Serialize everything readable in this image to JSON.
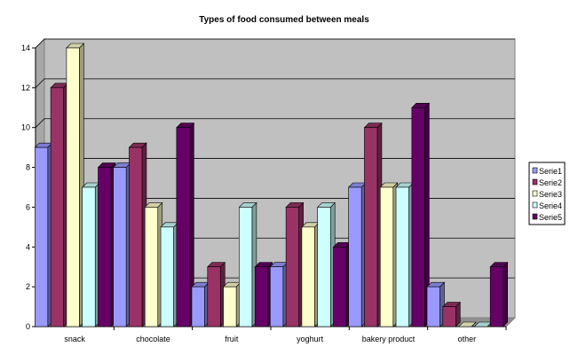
{
  "chart_data": {
    "type": "bar",
    "title": "Types of food consumed between meals",
    "categories": [
      "snack",
      "chocolate",
      "fruit",
      "yoghurt",
      "bakery product",
      "other"
    ],
    "series": [
      {
        "name": "Serie1",
        "values": [
          9,
          8,
          2,
          3,
          7,
          2
        ],
        "color": "#9999ff"
      },
      {
        "name": "Serie2",
        "values": [
          12,
          9,
          3,
          6,
          10,
          1
        ],
        "color": "#993366"
      },
      {
        "name": "Serie3",
        "values": [
          14,
          6,
          2,
          5,
          7,
          0
        ],
        "color": "#ffffcc"
      },
      {
        "name": "Serie4",
        "values": [
          7,
          5,
          6,
          6,
          7,
          0
        ],
        "color": "#ccffff"
      },
      {
        "name": "Serie5",
        "values": [
          8,
          10,
          3,
          4,
          11,
          3
        ],
        "color": "#660066"
      }
    ],
    "ylim": [
      0,
      14
    ],
    "yticks": [
      0,
      2,
      4,
      6,
      8,
      10,
      12,
      14
    ],
    "grid": true,
    "legend_position": "right",
    "plot_background": "#c0c0c0"
  }
}
